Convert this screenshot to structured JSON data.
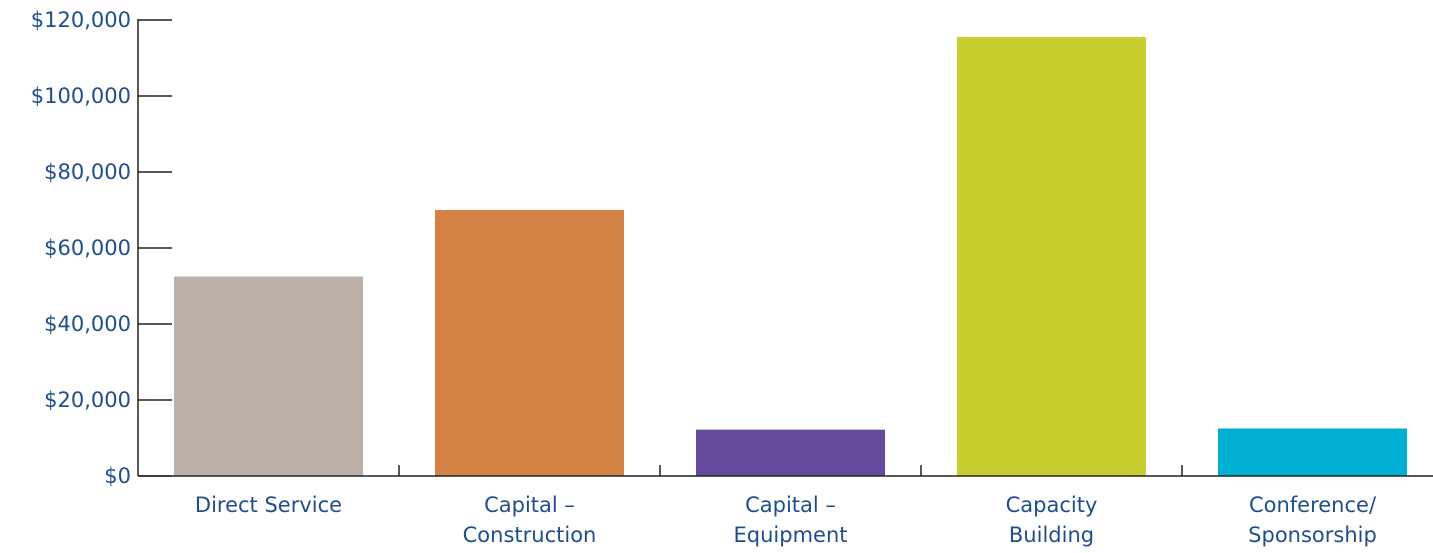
{
  "chart_data": {
    "type": "bar",
    "title": "",
    "xlabel": "",
    "ylabel": "",
    "categories": [
      [
        "Direct Service"
      ],
      [
        "Capital –",
        "Construction"
      ],
      [
        "Capital –",
        "Equipment"
      ],
      [
        "Capacity",
        "Building"
      ],
      [
        "Conference/",
        "Sponsorship"
      ]
    ],
    "values": [
      52500,
      70000,
      12200,
      115500,
      12500
    ],
    "colors": [
      "#bab0a7",
      "#d48246",
      "#64499d",
      "#c6cf2f",
      "#00afd2"
    ],
    "ylim": [
      0,
      120000
    ],
    "yticks": [
      0,
      20000,
      40000,
      60000,
      80000,
      100000,
      120000
    ],
    "ytick_labels": [
      "$0",
      "$20,000",
      "$40,000",
      "$60,000",
      "$80,000",
      "$100,000",
      "$120,000"
    ],
    "grid": false,
    "legend": "none"
  }
}
